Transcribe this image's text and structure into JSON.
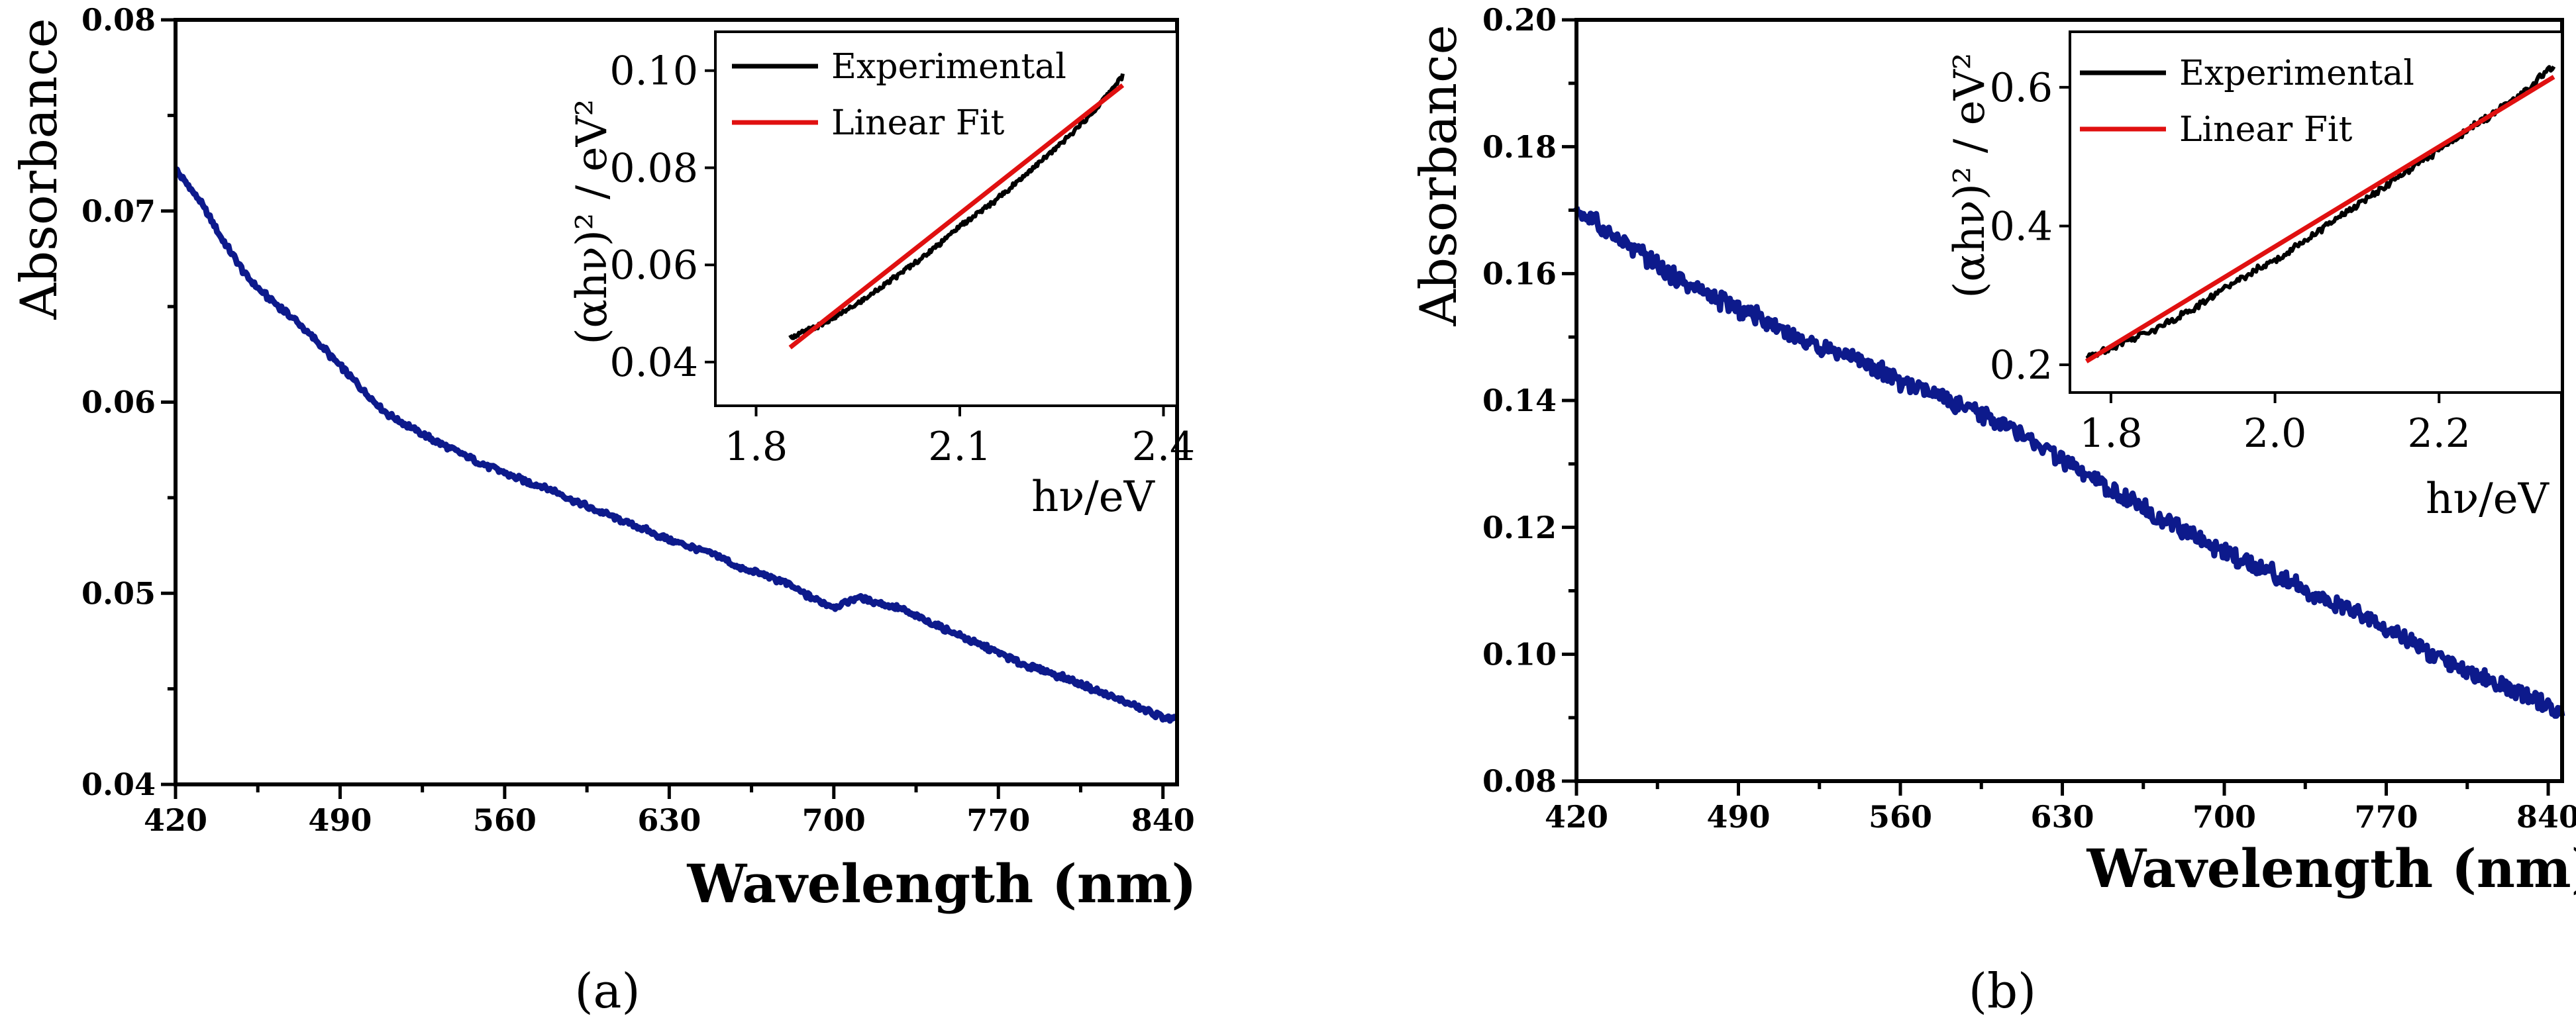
{
  "colors": {
    "main_curve": "#0d1a8c",
    "experimental": "#000000",
    "linear_fit": "#e01010",
    "axis": "#000000",
    "background": "#ffffff"
  },
  "panels": {
    "a": {
      "label": "(a)"
    },
    "b": {
      "label": "(b)"
    }
  },
  "chart_data": [
    {
      "id": "a-main",
      "type": "line",
      "title": "",
      "xlabel": "Wavelength (nm)",
      "ylabel": "Absorbance",
      "xlim": [
        420,
        846
      ],
      "ylim": [
        0.04,
        0.08
      ],
      "xticks": [
        420,
        490,
        560,
        630,
        700,
        770,
        840
      ],
      "xtick_labels": [
        "420",
        "490",
        "560",
        "630",
        "700",
        "770",
        "840"
      ],
      "yticks": [
        0.04,
        0.05,
        0.06,
        0.07,
        0.08
      ],
      "ytick_labels": [
        "0.04",
        "0.05",
        "0.06",
        "0.07",
        "0.08"
      ],
      "grid": false,
      "series": [
        {
          "name": "Absorbance",
          "x": [
            420,
            430,
            440,
            450,
            460,
            470,
            480,
            490,
            500,
            510,
            520,
            530,
            540,
            550,
            560,
            570,
            580,
            590,
            600,
            610,
            620,
            630,
            640,
            650,
            660,
            670,
            680,
            690,
            700,
            705,
            710,
            715,
            720,
            730,
            740,
            750,
            760,
            770,
            780,
            790,
            800,
            810,
            820,
            830,
            840,
            846
          ],
          "y": [
            0.0722,
            0.0706,
            0.0685,
            0.0666,
            0.0654,
            0.0644,
            0.0632,
            0.0619,
            0.0606,
            0.0594,
            0.0587,
            0.058,
            0.0574,
            0.0568,
            0.0563,
            0.0558,
            0.0554,
            0.0548,
            0.0543,
            0.0538,
            0.0533,
            0.0528,
            0.0524,
            0.052,
            0.0513,
            0.051,
            0.0505,
            0.0498,
            0.0493,
            0.0495,
            0.0498,
            0.0496,
            0.0495,
            0.0491,
            0.0485,
            0.048,
            0.0474,
            0.0469,
            0.0463,
            0.0459,
            0.0455,
            0.045,
            0.0445,
            0.044,
            0.0435,
            0.0434
          ]
        }
      ],
      "inset": {
        "type": "line",
        "xlabel": "hν/eV",
        "ylabel": "(αhν)² / eV²",
        "xlim": [
          1.74,
          2.42
        ],
        "ylim": [
          0.031,
          0.108
        ],
        "xticks": [
          1.8,
          2.1,
          2.4
        ],
        "xtick_labels": [
          "1.8",
          "2.1",
          "2.4"
        ],
        "yticks": [
          0.04,
          0.06,
          0.08,
          0.1
        ],
        "ytick_labels": [
          "0.04",
          "0.06",
          "0.08",
          "0.10"
        ],
        "legend": [
          "Experimental",
          "Linear Fit"
        ],
        "legend_position": "top-right",
        "series": [
          {
            "name": "Experimental",
            "x": [
              1.85,
              1.9,
              1.95,
              2.0,
              2.05,
              2.1,
              2.15,
              2.2,
              2.25,
              2.3,
              2.34
            ],
            "y": [
              0.045,
              0.048,
              0.052,
              0.057,
              0.062,
              0.068,
              0.073,
              0.079,
              0.085,
              0.092,
              0.099
            ]
          },
          {
            "name": "Linear Fit",
            "x": [
              1.85,
              2.34
            ],
            "y": [
              0.043,
              0.097
            ]
          }
        ]
      }
    },
    {
      "id": "b-main",
      "type": "line",
      "title": "",
      "xlabel": "Wavelength (nm)",
      "ylabel": "Absorbance",
      "xlim": [
        420,
        846
      ],
      "ylim": [
        0.08,
        0.2
      ],
      "xticks": [
        420,
        490,
        560,
        630,
        700,
        770,
        840
      ],
      "xtick_labels": [
        "420",
        "490",
        "560",
        "630",
        "700",
        "770",
        "840"
      ],
      "yticks": [
        0.08,
        0.1,
        0.12,
        0.14,
        0.16,
        0.18,
        0.2
      ],
      "ytick_labels": [
        "0.08",
        "0.10",
        "0.12",
        "0.14",
        "0.16",
        "0.18",
        "0.20"
      ],
      "grid": false,
      "series": [
        {
          "name": "Absorbance",
          "x": [
            420,
            440,
            460,
            480,
            500,
            520,
            540,
            560,
            580,
            600,
            620,
            640,
            660,
            680,
            700,
            720,
            740,
            760,
            780,
            800,
            820,
            846
          ],
          "y": [
            0.17,
            0.165,
            0.16,
            0.156,
            0.153,
            0.149,
            0.147,
            0.143,
            0.14,
            0.137,
            0.133,
            0.128,
            0.124,
            0.12,
            0.116,
            0.113,
            0.109,
            0.106,
            0.102,
            0.098,
            0.095,
            0.091
          ]
        }
      ],
      "inset": {
        "type": "line",
        "xlabel": "hν/eV",
        "ylabel": "(αhν)² / eV²",
        "xlim": [
          1.75,
          2.35
        ],
        "ylim": [
          0.16,
          0.68
        ],
        "xticks": [
          1.8,
          2.0,
          2.2
        ],
        "xtick_labels": [
          "1.8",
          "2.0",
          "2.2"
        ],
        "yticks": [
          0.2,
          0.4,
          0.6
        ],
        "ytick_labels": [
          "0.2",
          "0.4",
          "0.6"
        ],
        "legend": [
          "Experimental",
          "Linear Fit"
        ],
        "legend_position": "top-right",
        "series": [
          {
            "name": "Experimental",
            "x": [
              1.77,
              1.85,
              1.9,
              1.95,
              2.0,
              2.05,
              2.1,
              2.15,
              2.2,
              2.25,
              2.3,
              2.34
            ],
            "y": [
              0.21,
              0.25,
              0.28,
              0.32,
              0.35,
              0.39,
              0.43,
              0.47,
              0.51,
              0.55,
              0.59,
              0.63
            ]
          },
          {
            "name": "Linear Fit",
            "x": [
              1.77,
              2.34
            ],
            "y": [
              0.205,
              0.615
            ]
          }
        ]
      }
    }
  ]
}
